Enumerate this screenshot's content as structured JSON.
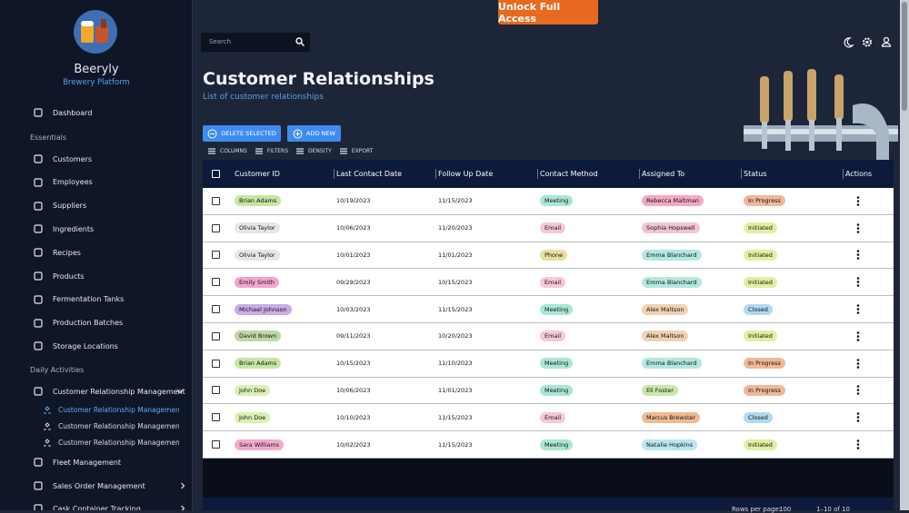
{
  "sidebar": {
    "brand": "Beeryly",
    "tagline": "Brewery Platform",
    "top": [
      "Dashboard"
    ],
    "sections": [
      {
        "title": "Essentials",
        "items": [
          "Customers",
          "Employees",
          "Suppliers",
          "Ingredients",
          "Recipes",
          "Products",
          "Fermentation Tanks",
          "Production Batches",
          "Storage Locations"
        ]
      },
      {
        "title": "Daily Activities",
        "items": [
          "Customer Relationship Management"
        ],
        "subitems": [
          "Customer Relationship Management Lis",
          "Customer Relationship Management by",
          "Customer Relationship Management by"
        ]
      }
    ],
    "more": [
      "Fleet Management",
      "Sales Order Management",
      "Cask Container Tracking"
    ]
  },
  "topbar": {
    "cta": "Unlock Full Access",
    "search": "Search"
  },
  "header": {
    "title": "Customer Relationships",
    "subtitle": "List of customer relationships"
  },
  "actions": [
    "DELETE SELECTED",
    "ADD NEW"
  ],
  "toolbar": [
    "COLUMNS",
    "FILTERS",
    "DENSITY",
    "EXPORT"
  ],
  "table": {
    "columns": [
      "Customer ID",
      "Last Contact Date",
      "Follow Up Date",
      "Contact Method",
      "Assigned To",
      "Status",
      "Actions"
    ],
    "rows": [
      [
        "Brian Adams",
        "10/19/2023",
        "11/15/2023",
        "Meeting",
        "Rebecca Maltman",
        "In Progress"
      ],
      [
        "Olivia Taylor",
        "10/06/2023",
        "11/20/2023",
        "Email",
        "Sophia Hopswell",
        "Initiated"
      ],
      [
        "Olivia Taylor",
        "10/01/2023",
        "11/01/2023",
        "Phone",
        "Emma Blanchard",
        "Initiated"
      ],
      [
        "Emily Smith",
        "09/29/2023",
        "10/15/2023",
        "Email",
        "Emma Blanchard",
        "Initiated"
      ],
      [
        "Michael Johnson",
        "10/03/2023",
        "11/15/2023",
        "Meeting",
        "Alex Maltson",
        "Closed"
      ],
      [
        "David Brown",
        "09/11/2023",
        "10/20/2023",
        "Email",
        "Alex Maltson",
        "Initiated"
      ],
      [
        "Brian Adams",
        "10/15/2023",
        "11/10/2023",
        "Meeting",
        "Emma Blanchard",
        "In Progress"
      ],
      [
        "John Doe",
        "10/06/2023",
        "11/01/2023",
        "Meeting",
        "Eli Foster",
        "In Progress"
      ],
      [
        "John Doe",
        "10/10/2023",
        "11/15/2023",
        "Email",
        "Marcus Brewster",
        "Closed"
      ],
      [
        "Sara Williams",
        "10/02/2023",
        "11/15/2023",
        "Meeting",
        "Natalie Hopkins",
        "Initiated"
      ]
    ],
    "row_colors": [
      [
        "#c6e6a2",
        null,
        null,
        "#a9e6d6",
        "#f4a9c0",
        "#f0b898"
      ],
      [
        "#e6e6e6",
        null,
        null,
        "#f8c8d8",
        "#f3c3d6",
        "#e0f0a0"
      ],
      [
        "#e6e6e6",
        null,
        null,
        "#e8df9f",
        "#b2e8e0",
        "#e0f0a0"
      ],
      [
        "#f2a6cc",
        null,
        null,
        "#f8c8d8",
        "#b2e8e0",
        "#e0f0a0"
      ],
      [
        "#c9ace9",
        null,
        null,
        "#a9e6d6",
        "#f0d2b2",
        "#b2d8f2"
      ],
      [
        "#bcd9a4",
        null,
        null,
        "#f8c8d8",
        "#f0d2b2",
        "#e0f0a0"
      ],
      [
        "#c6e6a2",
        null,
        null,
        "#a9e6d6",
        "#b2e8e0",
        "#f0b898"
      ],
      [
        "#d9f0b2",
        null,
        null,
        "#a9e6d6",
        "#c9e8aa",
        "#f0b898"
      ],
      [
        "#d9f0b2",
        null,
        null,
        "#f8c8d8",
        "#f0ba92",
        "#b2d8f2"
      ],
      [
        "#f2abcb",
        null,
        null,
        "#a9e6d6",
        "#b8e6f2",
        "#e0f0a0"
      ]
    ]
  },
  "pagination": {
    "label": "Rows per page:",
    "size": "100",
    "range": "1–10 of 10"
  }
}
